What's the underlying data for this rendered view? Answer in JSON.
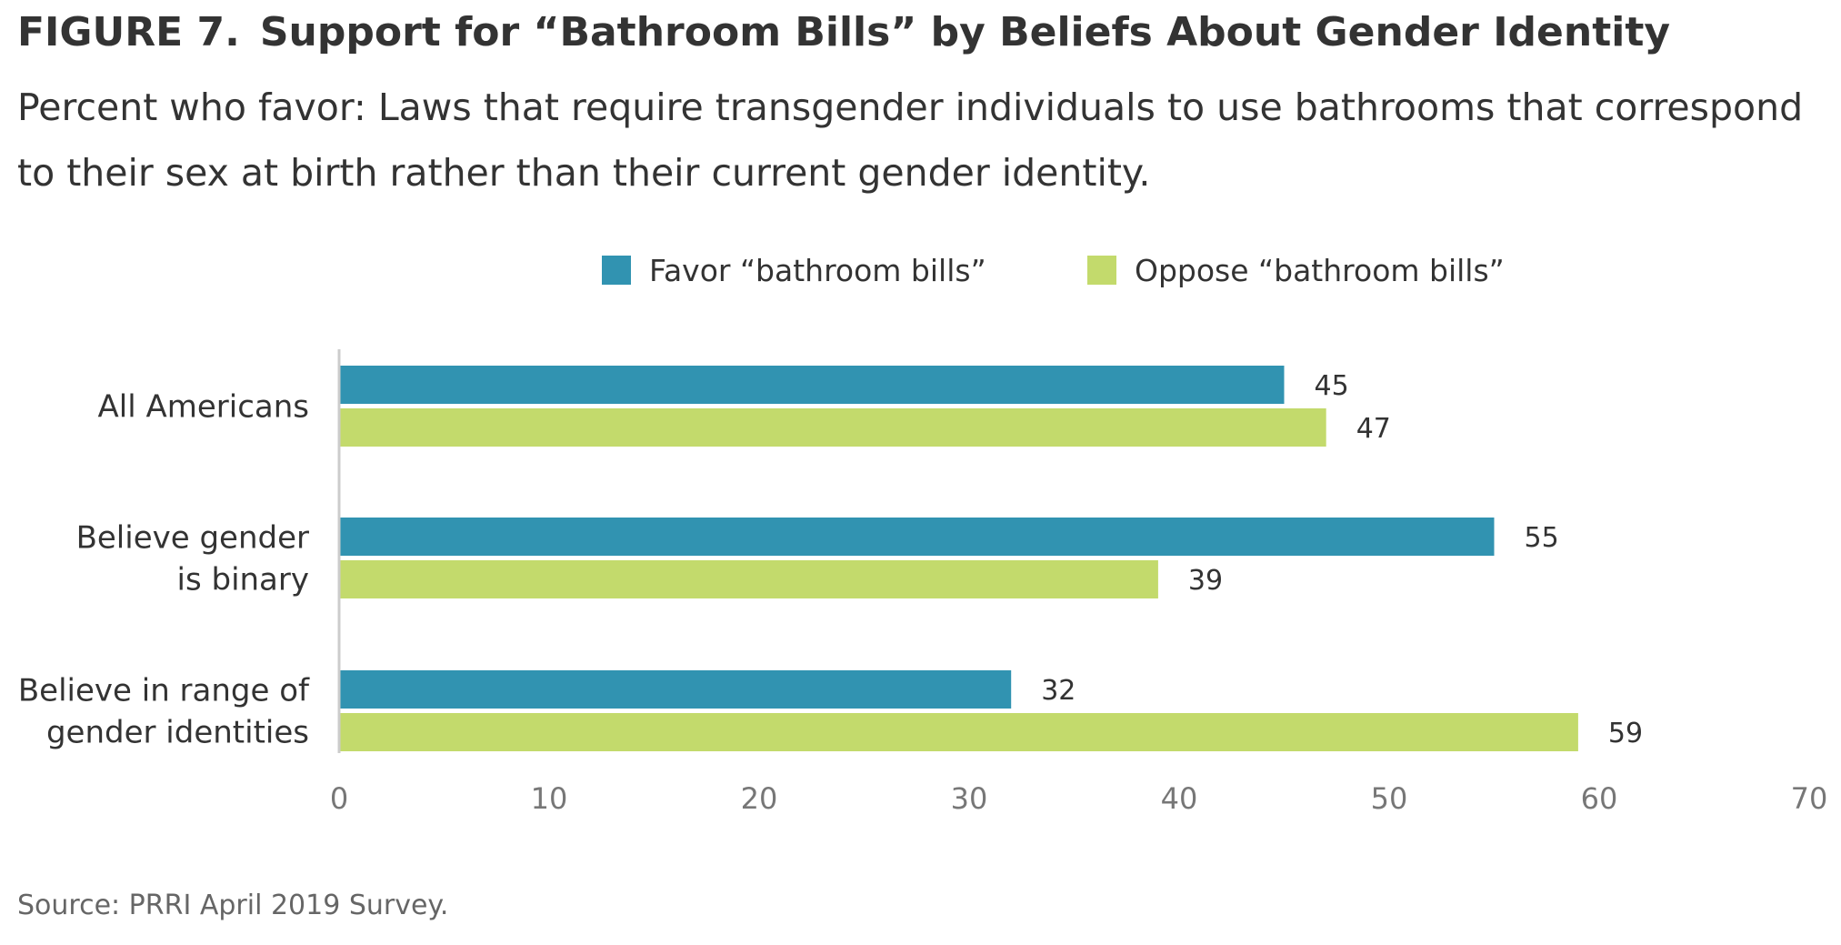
{
  "figure": {
    "label": "FIGURE 7.",
    "title": "Support for “Bathroom Bills” by Beliefs About Gender Identity",
    "subtitle": "Percent who favor: Laws that require transgender individuals to use bathrooms that correspond to their sex at birth rather than their current gender identity.",
    "source": "Source: PRRI April 2019 Survey."
  },
  "colors": {
    "favor": "#3193b1",
    "oppose": "#c3da6c",
    "axis": "#cccccc",
    "tick_text": "#777777",
    "label_text": "#333333"
  },
  "chart_data": {
    "type": "bar",
    "orientation": "horizontal",
    "categories": [
      [
        "All Americans"
      ],
      [
        "Believe gender",
        "is binary"
      ],
      [
        "Believe in range of",
        "gender identities"
      ]
    ],
    "series": [
      {
        "name": "Favor “bathroom bills”",
        "values": [
          45,
          55,
          32
        ],
        "color": "#3193b1"
      },
      {
        "name": "Oppose “bathroom bills”",
        "values": [
          47,
          39,
          59
        ],
        "color": "#c3da6c"
      }
    ],
    "xlim": [
      0,
      70
    ],
    "xticks": [
      0,
      10,
      20,
      30,
      40,
      50,
      60,
      70
    ],
    "grid": false,
    "legend": "top-center",
    "data_labels": true
  }
}
